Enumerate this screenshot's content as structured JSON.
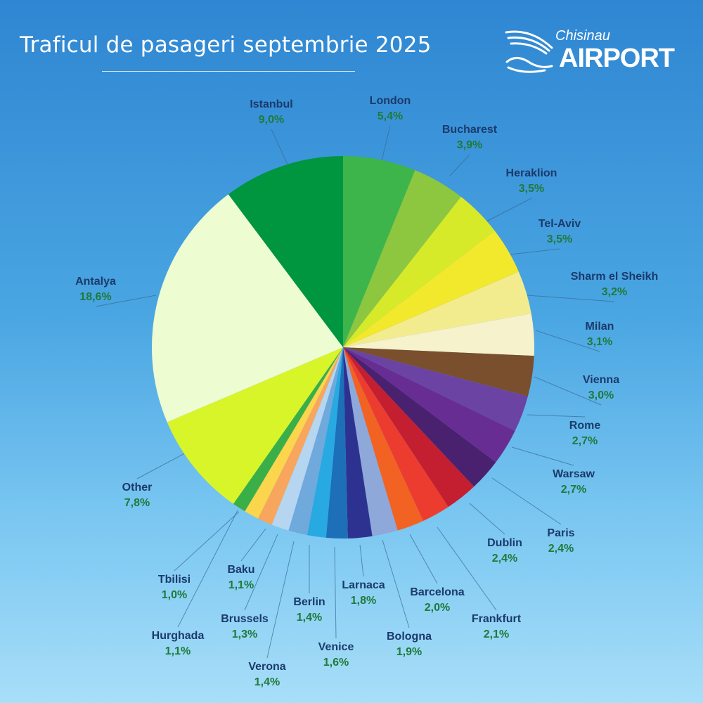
{
  "header": {
    "title": "Traficul de pasageri septembrie 2025",
    "logo_top": "Chisinau",
    "logo_bottom": "AIRPORT"
  },
  "chart_data": {
    "type": "pie",
    "title": "Traficul de pasageri septembrie 2025",
    "start": "top, clockwise",
    "slices": [
      {
        "label": "London",
        "value": 5.4,
        "display": "5,4%",
        "color": "#3db54a"
      },
      {
        "label": "Bucharest",
        "value": 3.9,
        "display": "3,9%",
        "color": "#8dc63f"
      },
      {
        "label": "Heraklion",
        "value": 3.5,
        "display": "3,5%",
        "color": "#d7ea2a"
      },
      {
        "label": "Tel-Aviv",
        "value": 3.5,
        "display": "3,5%",
        "color": "#f2e82c"
      },
      {
        "label": "Sharm el Sheikh",
        "value": 3.2,
        "display": "3,2%",
        "color": "#f3ec8f"
      },
      {
        "label": "Milan",
        "value": 3.1,
        "display": "3,1%",
        "color": "#f6f2cc"
      },
      {
        "label": "Vienna",
        "value": 3.0,
        "display": "3,0%",
        "color": "#7a4f2e"
      },
      {
        "label": "Rome",
        "value": 2.7,
        "display": "2,7%",
        "color": "#6b44a3"
      },
      {
        "label": "Warsaw",
        "value": 2.7,
        "display": "2,7%",
        "color": "#672d93"
      },
      {
        "label": "Paris",
        "value": 2.4,
        "display": "2,4%",
        "color": "#4a216f"
      },
      {
        "label": "Dublin",
        "value": 2.4,
        "display": "2,4%",
        "color": "#c41f30"
      },
      {
        "label": "Frankfurt",
        "value": 2.1,
        "display": "2,1%",
        "color": "#ec3c30"
      },
      {
        "label": "Barcelona",
        "value": 2.0,
        "display": "2,0%",
        "color": "#f26223"
      },
      {
        "label": "Bologna",
        "value": 1.9,
        "display": "1,9%",
        "color": "#8ea8d9"
      },
      {
        "label": "Larnaca",
        "value": 1.8,
        "display": "1,8%",
        "color": "#2d3290"
      },
      {
        "label": "Venice",
        "value": 1.6,
        "display": "1,6%",
        "color": "#1d6fb8"
      },
      {
        "label": "Berlin",
        "value": 1.4,
        "display": "1,4%",
        "color": "#29a9e1"
      },
      {
        "label": "Verona",
        "value": 1.4,
        "display": "1,4%",
        "color": "#70a9dc"
      },
      {
        "label": "Brussels",
        "value": 1.3,
        "display": "1,3%",
        "color": "#b5d5f0"
      },
      {
        "label": "Hurghada",
        "value": 1.1,
        "display": "1,1%",
        "color": "#f8a55e"
      },
      {
        "label": "Baku",
        "value": 1.1,
        "display": "1,1%",
        "color": "#fbd54c"
      },
      {
        "label": "Tbilisi",
        "value": 1.0,
        "display": "1,0%",
        "color": "#3aaf48"
      },
      {
        "label": "Other",
        "value": 7.8,
        "display": "7,8%",
        "color": "#d8f52a"
      },
      {
        "label": "Antalya",
        "value": 18.6,
        "display": "18,6%",
        "color": "#eefcd2"
      },
      {
        "label": "Istanbul",
        "value": 9.0,
        "display": "9,0%",
        "color": "#00953f"
      }
    ]
  }
}
